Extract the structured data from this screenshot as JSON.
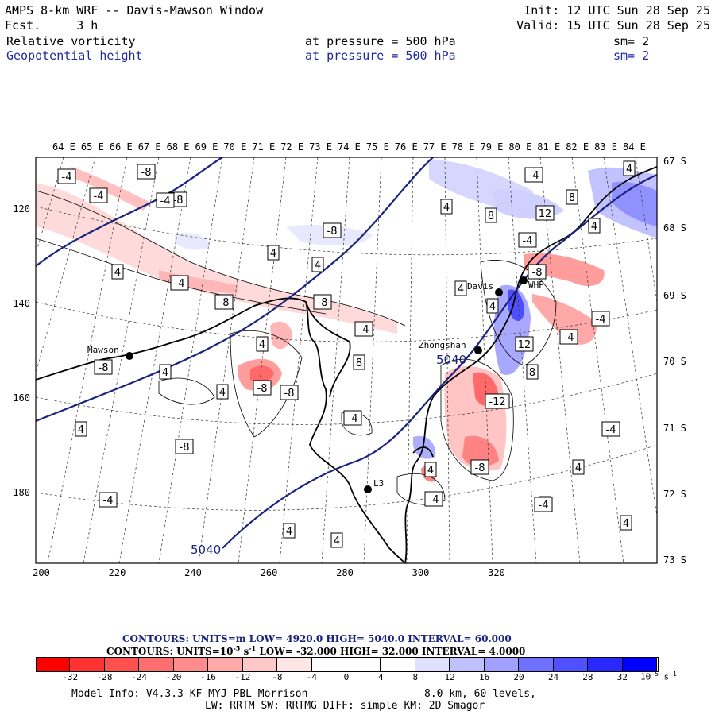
{
  "header": {
    "title": "AMPS 8-km WRF -- Davis-Mawson Window",
    "fcst_label": "Fcst.",
    "fcst_value": "3 h",
    "init": "Init: 12 UTC Sun 28 Sep 25",
    "valid": "Valid: 15 UTC Sun 28 Sep 25",
    "field1": {
      "name": "Relative vorticity",
      "level": "at pressure =  500 hPa",
      "sm": "sm= 2"
    },
    "field2": {
      "name": "Geopotential height",
      "level": "at pressure =  500 hPa",
      "sm": "sm= 2"
    }
  },
  "map": {
    "top_lon_labels": [
      "64 E",
      "65 E",
      "66 E",
      "67 E",
      "68 E",
      "69 E",
      "70 E",
      "71 E",
      "72 E",
      "73 E",
      "74 E",
      "75 E",
      "76 E",
      "77 E",
      "78 E",
      "79 E",
      "80 E",
      "81 E",
      "82 E",
      "83 E",
      "84 E"
    ],
    "right_lat_labels": [
      "67 S",
      "68 S",
      "69 S",
      "70 S",
      "71 S",
      "72 S",
      "73 S"
    ],
    "left_y_labels": [
      "120",
      "140",
      "160",
      "180"
    ],
    "bottom_x_labels": [
      "200",
      "220",
      "240",
      "260",
      "280",
      "300",
      "320"
    ],
    "stations": [
      "Mawson",
      "Davis",
      "Zhongshan",
      "L3",
      "WHP"
    ],
    "height_labels": [
      "5040",
      "5040"
    ],
    "contour_labels": [
      "-4",
      "-8",
      "-4",
      "-8",
      "4",
      "-4",
      "-8",
      "-8",
      "-8",
      "-8",
      "-4",
      "4",
      "4",
      "-8",
      "4",
      "8",
      "12",
      "8",
      "-4",
      "-8",
      "-4",
      "8",
      "12",
      "8",
      "4",
      "-8",
      "-4",
      "-4",
      "-4",
      "4",
      "4",
      "-12",
      "-8",
      "4",
      "-4",
      "4",
      "4",
      "4",
      "4",
      "4",
      "4",
      "-4",
      "4",
      "-8",
      "-4",
      "4",
      "-4",
      "4",
      "-8",
      "4",
      "-4"
    ]
  },
  "legend": {
    "contours1": "CONTOURS:  UNITS=m  LOW=  4920.0     HIGH=  5040.0     INTERVAL=   60.000",
    "contours2_pre": "CONTOURS:  UNITS=10",
    "contours2_sup": "-5",
    "contours2_mid": " s",
    "contours2_sup2": "-1",
    "contours2_post": "  LOW=  -32.000       HIGH=  32.000       INTERVAL=   4.0000",
    "ticks": [
      "-32",
      "-28",
      "-24",
      "-20",
      "-16",
      "-12",
      "-8",
      "-4",
      "0",
      "4",
      "8",
      "12",
      "16",
      "20",
      "24",
      "28",
      "32"
    ],
    "unit_label": "10",
    "unit_sup": "-5",
    "unit_s": " s",
    "unit_sup2": "-1",
    "colors": [
      "#ff0000",
      "#ff3232",
      "#ff5050",
      "#ff6e6e",
      "#ff8c8c",
      "#ffaaaa",
      "#ffc8c8",
      "#ffe6e6",
      "#ffffff",
      "#ffffff",
      "#e0e0ff",
      "#c0c0ff",
      "#a0a0ff",
      "#7070ff",
      "#5050ff",
      "#2828ff",
      "#0000ff"
    ]
  },
  "footer": {
    "line1a": "Model Info: V4.3.3   KF     MYJ PBL  Morrison",
    "line1b": "8.0 km,  60 levels,",
    "line2": "LW: RRTM SW: RRTMG   DIFF: simple KM: 2D Smagor"
  }
}
